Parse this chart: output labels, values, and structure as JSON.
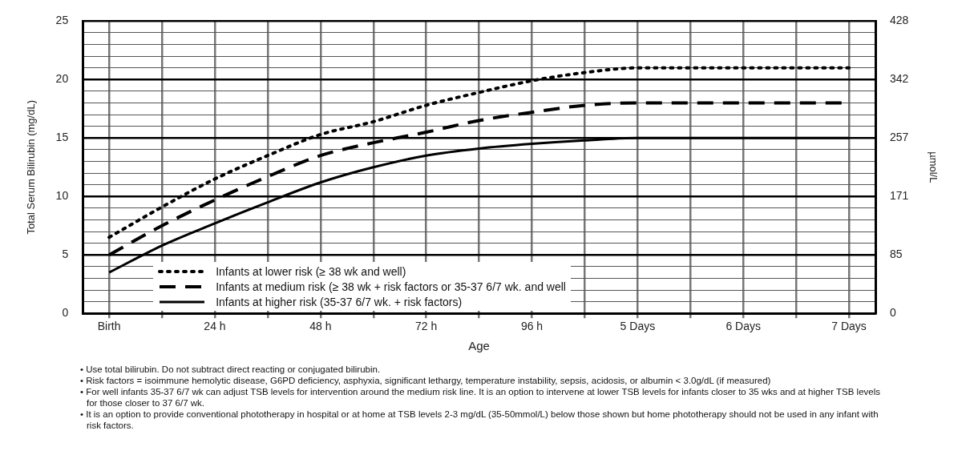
{
  "chart_data": {
    "type": "line",
    "xlabel": "Age",
    "ylabel": "Total Serum Bilirubin (mg/dL)",
    "y2label": "µmol/L",
    "categories": [
      "Birth",
      null,
      "24 h",
      null,
      "48 h",
      null,
      "72 h",
      null,
      "96 h",
      null,
      "5 Days",
      null,
      "6 Days",
      null,
      "7 Days"
    ],
    "series": [
      {
        "name": "Infants at lower risk (≥ 38 wk and well)",
        "color": "#000000",
        "line_style": "dotted",
        "values": [
          6.5,
          9.1,
          11.5,
          13.5,
          15.3,
          16.4,
          17.8,
          18.9,
          19.9,
          20.6,
          21.0,
          21.0,
          21.0,
          21.0,
          21.0
        ]
      },
      {
        "name": "Infants at medium risk (≥ 38 wk + risk factors or 35-37 6/7 wk. and well",
        "color": "#000000",
        "line_style": "dashed",
        "values": [
          5.0,
          7.5,
          9.7,
          11.7,
          13.5,
          14.6,
          15.5,
          16.5,
          17.2,
          17.8,
          18.0,
          18.0,
          18.0,
          18.0,
          18.0
        ]
      },
      {
        "name": "Infants at higher risk (35-37 6/7 wk. + risk factors)",
        "color": "#000000",
        "line_style": "solid",
        "values": [
          3.5,
          5.8,
          7.7,
          9.5,
          11.2,
          12.5,
          13.5,
          14.1,
          14.5,
          14.8,
          15.0,
          15.0,
          15.0,
          15.0,
          15.0
        ]
      }
    ],
    "ylim": [
      0,
      25
    ],
    "yticks": [
      0,
      {
        "value": 1,
        "label": null
      },
      {
        "value": 2,
        "label": null
      },
      {
        "value": 3,
        "label": null
      },
      {
        "value": 4,
        "label": null
      },
      5,
      {
        "value": 6,
        "label": null
      },
      {
        "value": 7,
        "label": null
      },
      {
        "value": 8,
        "label": null
      },
      {
        "value": 9,
        "label": null
      },
      10,
      {
        "value": 11,
        "label": null
      },
      {
        "value": 12,
        "label": null
      },
      {
        "value": 13,
        "label": null
      },
      {
        "value": 14,
        "label": null
      },
      15,
      {
        "value": 16,
        "label": null
      },
      {
        "value": 17,
        "label": null
      },
      {
        "value": 18,
        "label": null
      },
      {
        "value": 19,
        "label": null
      },
      20,
      {
        "value": 21,
        "label": null
      },
      {
        "value": 22,
        "label": null
      },
      {
        "value": 23,
        "label": null
      },
      {
        "value": 24,
        "label": null
      },
      25
    ],
    "y2lim": [
      0,
      427.5
    ],
    "y2ticks": [
      0,
      {
        "value": 85.5,
        "label": "85"
      },
      171,
      {
        "value": 256.5,
        "label": "257"
      },
      342,
      {
        "value": 427.5,
        "label": "428"
      }
    ],
    "grid": true,
    "legend": "bottom left",
    "marker": "none",
    "annotations": [
      "• Use total bilirubin.  Do not subtract direct reacting or conjugated bilirubin.",
      "• Risk factors = isoimmune hemolytic disease, G6PD deficiency, asphyxia, significant lethargy, temperature instability, sepsis, acidosis, or albumin < 3.0g/dL (if measured)",
      "• For well infants 35-37 6/7 wk can adjust TSB levels for intervention around the medium risk line.  It is an option to intervene at lower TSB levels for infants closer to 35 wks and at higher TSB levels for those closer to 37 6/7 wk.",
      "• It is an option to provide conventional phototherapy in hospital or at home at TSB levels 2-3 mg/dL (35-50mmol/L) below those shown but home phototherapy should not be used in any infant with risk factors."
    ]
  }
}
